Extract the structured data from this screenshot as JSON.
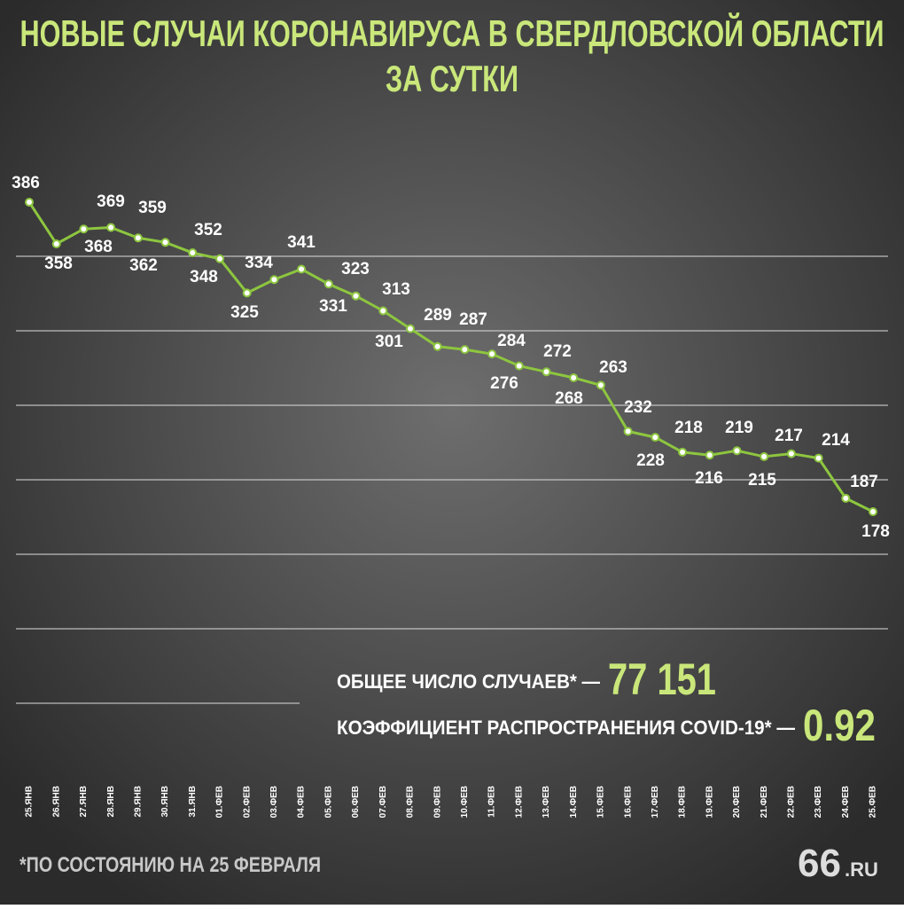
{
  "chart_data": {
    "type": "line",
    "title_lines": [
      "НОВЫЕ СЛУЧАИ КОРОНАВИРУСА В СВЕРДЛОВСКОЙ ОБЛАСТИ",
      "ЗА СУТКИ"
    ],
    "categories": [
      "25.ЯНВ",
      "26.ЯНВ",
      "27.ЯНВ",
      "28.ЯНВ",
      "29.ЯНВ",
      "30.ЯНВ",
      "31.ЯНВ",
      "01.ФЕВ",
      "02.ФЕВ",
      "03.ФЕВ",
      "04.ФЕВ",
      "05.ФЕВ",
      "06.ФЕВ",
      "07.ФЕВ",
      "08.ФЕВ",
      "09.ФЕВ",
      "10.ФЕВ",
      "11.ФЕВ",
      "12.ФЕВ",
      "13.ФЕВ",
      "14.ФЕВ",
      "15.ФЕВ",
      "16.ФЕВ",
      "17.ФЕВ",
      "18.ФЕВ",
      "19.ФЕВ",
      "20.ФЕВ",
      "21.ФЕВ",
      "22.ФЕВ",
      "23.ФЕВ",
      "24.ФЕВ",
      "25.ФЕВ"
    ],
    "values": [
      386,
      358,
      368,
      369,
      362,
      359,
      352,
      348,
      325,
      334,
      341,
      331,
      323,
      313,
      301,
      289,
      287,
      284,
      276,
      272,
      268,
      263,
      232,
      228,
      218,
      216,
      219,
      215,
      217,
      214,
      187,
      178
    ],
    "color": "#8dc63f",
    "stats": [
      {
        "label": "ОБЩЕЕ ЧИСЛО СЛУЧАЕВ* —",
        "value": "77 151"
      },
      {
        "label": "КОЭФФИЦИЕНТ РАСПРОСТРАНЕНИЯ COVID-19* —",
        "value": "0.92"
      }
    ],
    "footnote": "*ПО СОСТОЯНИЮ НА 25 ФЕВРАЛЯ",
    "logo": [
      "66",
      ".RU"
    ]
  }
}
